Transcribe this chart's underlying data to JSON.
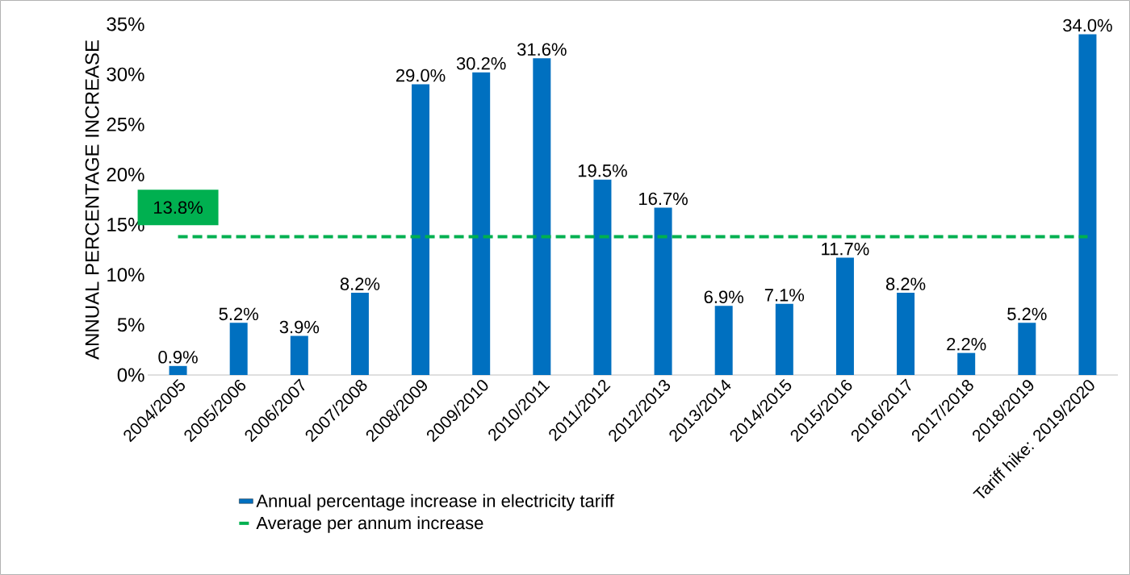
{
  "chart_data": {
    "type": "bar",
    "ylabel": "ANNUAL PERCENTAGE INCREASE",
    "categories": [
      "2004/2005",
      "2005/2006",
      "2006/2007",
      "2007/2008",
      "2008/2009",
      "2009/2010",
      "2010/2011",
      "2011/2012",
      "2012/2013",
      "2013/2014",
      "2014/2015",
      "2015/2016",
      "2016/2017",
      "2017/2018",
      "2018/2019",
      "Tariff hike: 2019/2020"
    ],
    "series": [
      {
        "name": "Annual percentage increase in electricity tariff",
        "color": "#0070c0",
        "values": [
          0.9,
          5.2,
          3.9,
          8.2,
          29.0,
          30.2,
          31.6,
          19.5,
          16.7,
          6.9,
          7.1,
          11.7,
          8.2,
          2.2,
          5.2,
          34.0
        ],
        "value_labels": [
          "0.9%",
          "5.2%",
          "3.9%",
          "8.2%",
          "29.0%",
          "30.2%",
          "31.6%",
          "19.5%",
          "16.7%",
          "6.9%",
          "7.1%",
          "11.7%",
          "8.2%",
          "2.2%",
          "5.2%",
          "34.0%"
        ]
      },
      {
        "name": "Average per annum increase",
        "type": "line",
        "color": "#00b050",
        "line_style": "dashed",
        "values": [
          13.8,
          13.8,
          13.8,
          13.8,
          13.8,
          13.8,
          13.8,
          13.8,
          13.8,
          13.8,
          13.8,
          13.8,
          13.8,
          13.8,
          13.8,
          13.8
        ],
        "value_labels": [
          "13.8%",
          null,
          null,
          null,
          null,
          null,
          null,
          null,
          null,
          null,
          null,
          null,
          null,
          null,
          null,
          null
        ]
      }
    ],
    "ylim": [
      0,
      35
    ],
    "yticks": [
      {
        "value": 0,
        "label": "0%"
      },
      {
        "value": 5,
        "label": "5%"
      },
      {
        "value": 10,
        "label": "10%"
      },
      {
        "value": 15,
        "label": "15%"
      },
      {
        "value": 20,
        "label": "20%"
      },
      {
        "value": 25,
        "label": "25%"
      },
      {
        "value": 30,
        "label": "30%"
      },
      {
        "value": 35,
        "label": "35%"
      }
    ],
    "grid": false,
    "legend": "bottom"
  }
}
